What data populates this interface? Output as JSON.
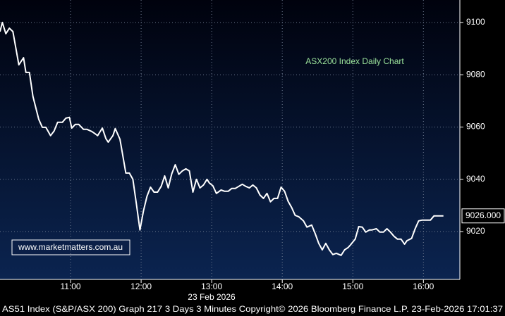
{
  "chart_data": {
    "type": "line",
    "title": "ASX200 Index Daily Chart",
    "watermark": "www.marketmatters.com.au",
    "date_label": "23 Feb 2026",
    "footer": "AS51 Index (S&P/ASX 200) Graph 217 3 Days 3 Minutes Copyright© 2026 Bloomberg Finance L.P. 23-Feb-2026 17:01:37",
    "last_price": {
      "value": 9026,
      "label": "9026.000"
    },
    "color": "#ffffff",
    "grid": true,
    "x": [
      "10:00",
      "10:02",
      "10:05",
      "10:08",
      "10:11",
      "10:16",
      "10:20",
      "10:22",
      "10:25",
      "10:28",
      "10:33",
      "10:36",
      "10:39",
      "10:43",
      "10:46",
      "10:49",
      "10:53",
      "10:56",
      "10:59",
      "11:01",
      "11:04",
      "11:07",
      "11:11",
      "11:14",
      "11:18",
      "11:20",
      "11:23",
      "11:27",
      "11:30",
      "11:32",
      "11:36",
      "11:38",
      "11:42",
      "11:44",
      "11:47",
      "11:50",
      "11:53",
      "11:56",
      "11:59",
      "12:02",
      "12:05",
      "12:08",
      "12:11",
      "12:14",
      "12:17",
      "12:20",
      "12:23",
      "12:26",
      "12:29",
      "12:32",
      "12:35",
      "12:38",
      "12:41",
      "12:44",
      "12:47",
      "12:50",
      "12:53",
      "12:56",
      "12:58",
      "13:01",
      "13:04",
      "13:08",
      "13:11",
      "13:14",
      "13:17",
      "13:20",
      "13:23",
      "13:26",
      "13:29",
      "13:32",
      "13:35",
      "13:38",
      "13:41",
      "13:44",
      "13:47",
      "13:50",
      "13:53",
      "13:56",
      "13:59",
      "14:02",
      "14:05",
      "14:08",
      "14:11",
      "14:14",
      "14:18",
      "14:21",
      "14:25",
      "14:28",
      "14:31",
      "14:34",
      "14:37",
      "14:40",
      "14:43",
      "14:46",
      "14:50",
      "14:53",
      "14:56",
      "14:58",
      "15:02",
      "15:05",
      "15:08",
      "15:11",
      "15:14",
      "15:16",
      "15:20",
      "15:23",
      "15:26",
      "15:29",
      "15:32",
      "15:35",
      "15:38",
      "15:41",
      "15:44",
      "15:46",
      "15:50",
      "15:53",
      "15:56",
      "15:59",
      "16:02",
      "16:06",
      "16:09",
      "16:12",
      "16:17"
    ],
    "values": [
      9096.5,
      9100,
      9095.7,
      9097.8,
      9096.5,
      9083.8,
      9086.5,
      9080.9,
      9080.9,
      9071.7,
      9062.9,
      9059.9,
      9059.9,
      9056.7,
      9058.5,
      9061.8,
      9061.8,
      9063.4,
      9063.7,
      9059.6,
      9061.0,
      9061.0,
      9059.1,
      9059.1,
      9058.3,
      9057.7,
      9056.7,
      9059.6,
      9055.6,
      9054.2,
      9056.7,
      9059.4,
      9055.3,
      9050.2,
      9042.4,
      9042.4,
      9040.0,
      9030.5,
      9020.6,
      9027.9,
      9033.5,
      9037.0,
      9035.1,
      9035.1,
      9037.3,
      9041.3,
      9036.7,
      9042.1,
      9045.6,
      9041.9,
      9043.2,
      9044.0,
      9043.2,
      9035.1,
      9040.0,
      9036.7,
      9037.8,
      9040.0,
      9038.6,
      9037.5,
      9034.6,
      9035.9,
      9035.4,
      9035.4,
      9036.5,
      9036.5,
      9037.3,
      9038.1,
      9037.3,
      9036.7,
      9037.8,
      9036.7,
      9034.0,
      9032.7,
      9034.6,
      9031.4,
      9032.7,
      9032.7,
      9037.0,
      9035.4,
      9031.6,
      9029.2,
      9026.2,
      9025.7,
      9024.1,
      9021.7,
      9022.5,
      9019.2,
      9015.5,
      9013.0,
      9015.5,
      9013.0,
      9011.2,
      9011.7,
      9010.9,
      9013.0,
      9013.9,
      9014.9,
      9017.1,
      9021.9,
      9021.7,
      9019.8,
      9020.6,
      9020.6,
      9021.1,
      9019.8,
      9019.8,
      9021.1,
      9019.8,
      9018.2,
      9017.1,
      9017.1,
      9015.2,
      9016.5,
      9017.4,
      9021.1,
      9024.1,
      9024.4,
      9024.4,
      9024.4,
      9026.0,
      9026.0,
      9026.0
    ],
    "xlim": [
      "10:00",
      "16:31"
    ],
    "xticks": [
      "11:00",
      "12:00",
      "13:00",
      "14:00",
      "15:00",
      "16:00"
    ],
    "ylim": [
      9001.7,
      9108.6
    ],
    "yticks": [
      9020,
      9040,
      9060,
      9080,
      9100
    ]
  }
}
